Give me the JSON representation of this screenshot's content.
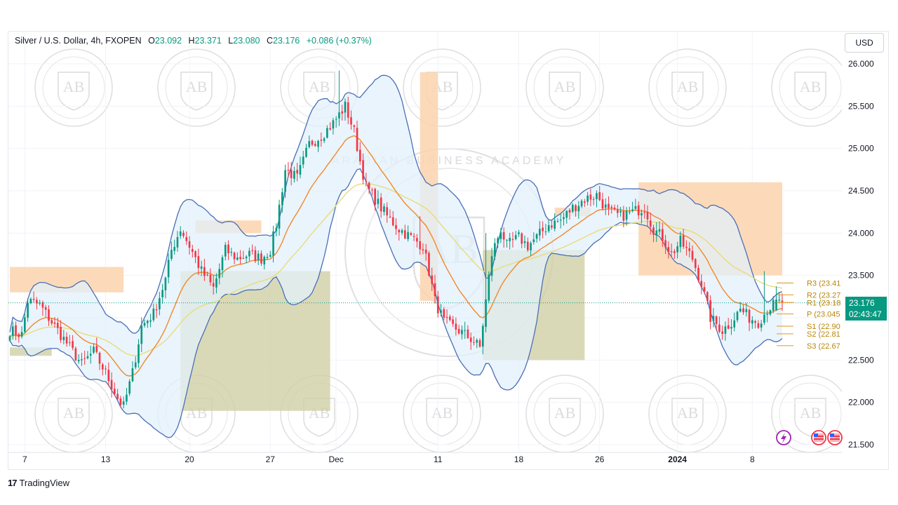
{
  "header": {
    "symbol": "Silver / U.S. Dollar, 4h, FXOPEN",
    "open_label": "O",
    "open": "23.092",
    "high_label": "H",
    "high": "23.371",
    "low_label": "L",
    "low": "23.080",
    "close_label": "C",
    "close": "23.176",
    "change": "+0.086 (+0.37%)"
  },
  "currency": "USD",
  "price_badge": {
    "price": "23.176",
    "countdown": "02:43:47"
  },
  "brand": {
    "logo": "17",
    "name": "TradingView"
  },
  "colors": {
    "up": "#089981",
    "down": "#f23645",
    "bb_line": "#4a6fb5",
    "bb_fill": "#e3f0fb",
    "ema_fast": "#ef8a2a",
    "ema_slow": "#e8dc7a",
    "supply": "#fbd3ad",
    "demand": "#cfcfa6",
    "pivot": "#e0a53c"
  },
  "watermark": {
    "initials": "AB",
    "text": "ARABIAN BUSINESS ACADEMY"
  },
  "chart_data": {
    "type": "candlestick",
    "symbol": "XAGUSD",
    "timeframe": "4h",
    "ylim": [
      21.5,
      26.0
    ],
    "yticks": [
      "26.000",
      "25.500",
      "25.000",
      "24.500",
      "24.000",
      "23.500",
      "23.000",
      "22.500",
      "22.000",
      "21.500"
    ],
    "xticks": [
      {
        "label": "7",
        "bold": false,
        "idx": 5
      },
      {
        "label": "13",
        "bold": false,
        "idx": 32
      },
      {
        "label": "20",
        "bold": false,
        "idx": 60
      },
      {
        "label": "27",
        "bold": false,
        "idx": 87
      },
      {
        "label": "Dec",
        "bold": false,
        "idx": 109
      },
      {
        "label": "11",
        "bold": false,
        "idx": 143
      },
      {
        "label": "18",
        "bold": false,
        "idx": 170
      },
      {
        "label": "26",
        "bold": false,
        "idx": 197
      },
      {
        "label": "2024",
        "bold": true,
        "idx": 223
      },
      {
        "label": "8",
        "bold": false,
        "idx": 248
      }
    ],
    "close_keypoints": [
      [
        0,
        22.85
      ],
      [
        4,
        22.8
      ],
      [
        6,
        23.2
      ],
      [
        10,
        23.15
      ],
      [
        14,
        22.95
      ],
      [
        18,
        22.75
      ],
      [
        24,
        22.45
      ],
      [
        28,
        22.6
      ],
      [
        32,
        22.35
      ],
      [
        36,
        22.05
      ],
      [
        38,
        21.95
      ],
      [
        41,
        22.35
      ],
      [
        44,
        22.9
      ],
      [
        48,
        23.05
      ],
      [
        52,
        23.45
      ],
      [
        54,
        23.8
      ],
      [
        57,
        24.05
      ],
      [
        60,
        23.85
      ],
      [
        64,
        23.55
      ],
      [
        68,
        23.35
      ],
      [
        72,
        23.8
      ],
      [
        76,
        23.7
      ],
      [
        80,
        23.75
      ],
      [
        84,
        23.7
      ],
      [
        87,
        23.8
      ],
      [
        89,
        24.1
      ],
      [
        92,
        24.75
      ],
      [
        96,
        24.65
      ],
      [
        100,
        25.05
      ],
      [
        104,
        25.15
      ],
      [
        108,
        25.3
      ],
      [
        112,
        25.5
      ],
      [
        115,
        25.2
      ],
      [
        117,
        24.85
      ],
      [
        119,
        24.55
      ],
      [
        122,
        24.4
      ],
      [
        126,
        24.2
      ],
      [
        130,
        24.05
      ],
      [
        134,
        23.95
      ],
      [
        138,
        23.85
      ],
      [
        140,
        23.55
      ],
      [
        142,
        23.2
      ],
      [
        145,
        22.95
      ],
      [
        150,
        22.85
      ],
      [
        154,
        22.75
      ],
      [
        157,
        22.65
      ],
      [
        159,
        23.2
      ],
      [
        161,
        23.75
      ],
      [
        164,
        24.05
      ],
      [
        166,
        23.85
      ],
      [
        170,
        23.95
      ],
      [
        173,
        23.85
      ],
      [
        176,
        23.95
      ],
      [
        180,
        24.1
      ],
      [
        184,
        24.15
      ],
      [
        188,
        24.3
      ],
      [
        192,
        24.4
      ],
      [
        196,
        24.45
      ],
      [
        200,
        24.25
      ],
      [
        204,
        24.2
      ],
      [
        208,
        24.25
      ],
      [
        212,
        24.3
      ],
      [
        215,
        24.05
      ],
      [
        218,
        23.95
      ],
      [
        221,
        23.75
      ],
      [
        224,
        23.9
      ],
      [
        228,
        23.7
      ],
      [
        231,
        23.4
      ],
      [
        234,
        23.0
      ],
      [
        238,
        22.85
      ],
      [
        241,
        22.95
      ],
      [
        244,
        23.1
      ],
      [
        247,
        23.0
      ],
      [
        250,
        22.95
      ],
      [
        253,
        23.1
      ],
      [
        256,
        23.176
      ]
    ],
    "pivot_levels": [
      {
        "label": "R3",
        "value": "23.41"
      },
      {
        "label": "R2",
        "value": "23.27"
      },
      {
        "label": "R1",
        "value": "23.18"
      },
      {
        "label": "P",
        "value": "23.045"
      },
      {
        "label": "S1",
        "value": "22.90"
      },
      {
        "label": "S2",
        "value": "22.81"
      },
      {
        "label": "S3",
        "value": "22.67"
      }
    ],
    "supply_zones": [
      {
        "i0": 0,
        "i1": 38,
        "top": 23.6,
        "bottom": 23.3
      },
      {
        "i0": 62,
        "i1": 84,
        "top": 24.15,
        "bottom": 24.0
      },
      {
        "i0": 137,
        "i1": 143,
        "top": 25.9,
        "bottom": 23.2
      },
      {
        "i0": 182,
        "i1": 194,
        "top": 24.3,
        "bottom": 24.2
      },
      {
        "i0": 210,
        "i1": 258,
        "top": 24.6,
        "bottom": 23.5
      }
    ],
    "demand_zones": [
      {
        "i0": 0,
        "i1": 14,
        "top": 22.65,
        "bottom": 22.55
      },
      {
        "i0": 57,
        "i1": 107,
        "top": 23.55,
        "bottom": 21.9
      },
      {
        "i0": 158,
        "i1": 192,
        "top": 23.8,
        "bottom": 22.5
      }
    ],
    "last_price": 23.176
  }
}
